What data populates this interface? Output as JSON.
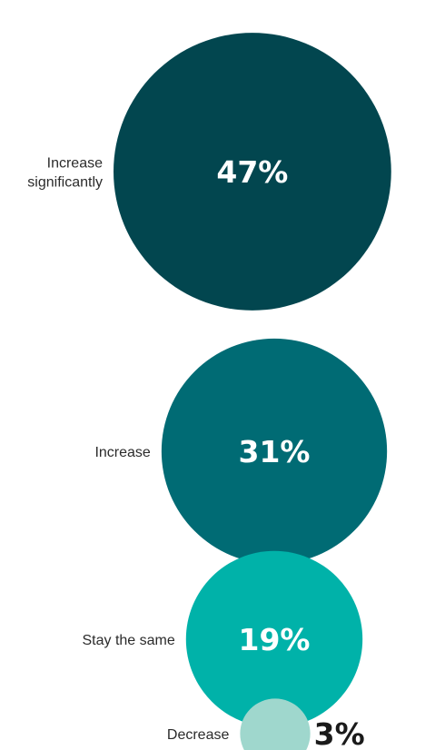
{
  "chart_data": {
    "type": "bubble",
    "categories": [
      "Increase significantly",
      "Increase",
      "Stay the same",
      "Decrease"
    ],
    "values": [
      47,
      31,
      19,
      3
    ],
    "value_labels": [
      "47%",
      "31%",
      "19%",
      "3%"
    ],
    "unit": "%",
    "colors": [
      "#02464f",
      "#006b74",
      "#00b2a9",
      "#9fd7cd"
    ],
    "label_colors": [
      "#ffffff",
      "#ffffff",
      "#ffffff",
      "#1a1a1a"
    ],
    "title": "",
    "legend": "none",
    "grid": false
  }
}
